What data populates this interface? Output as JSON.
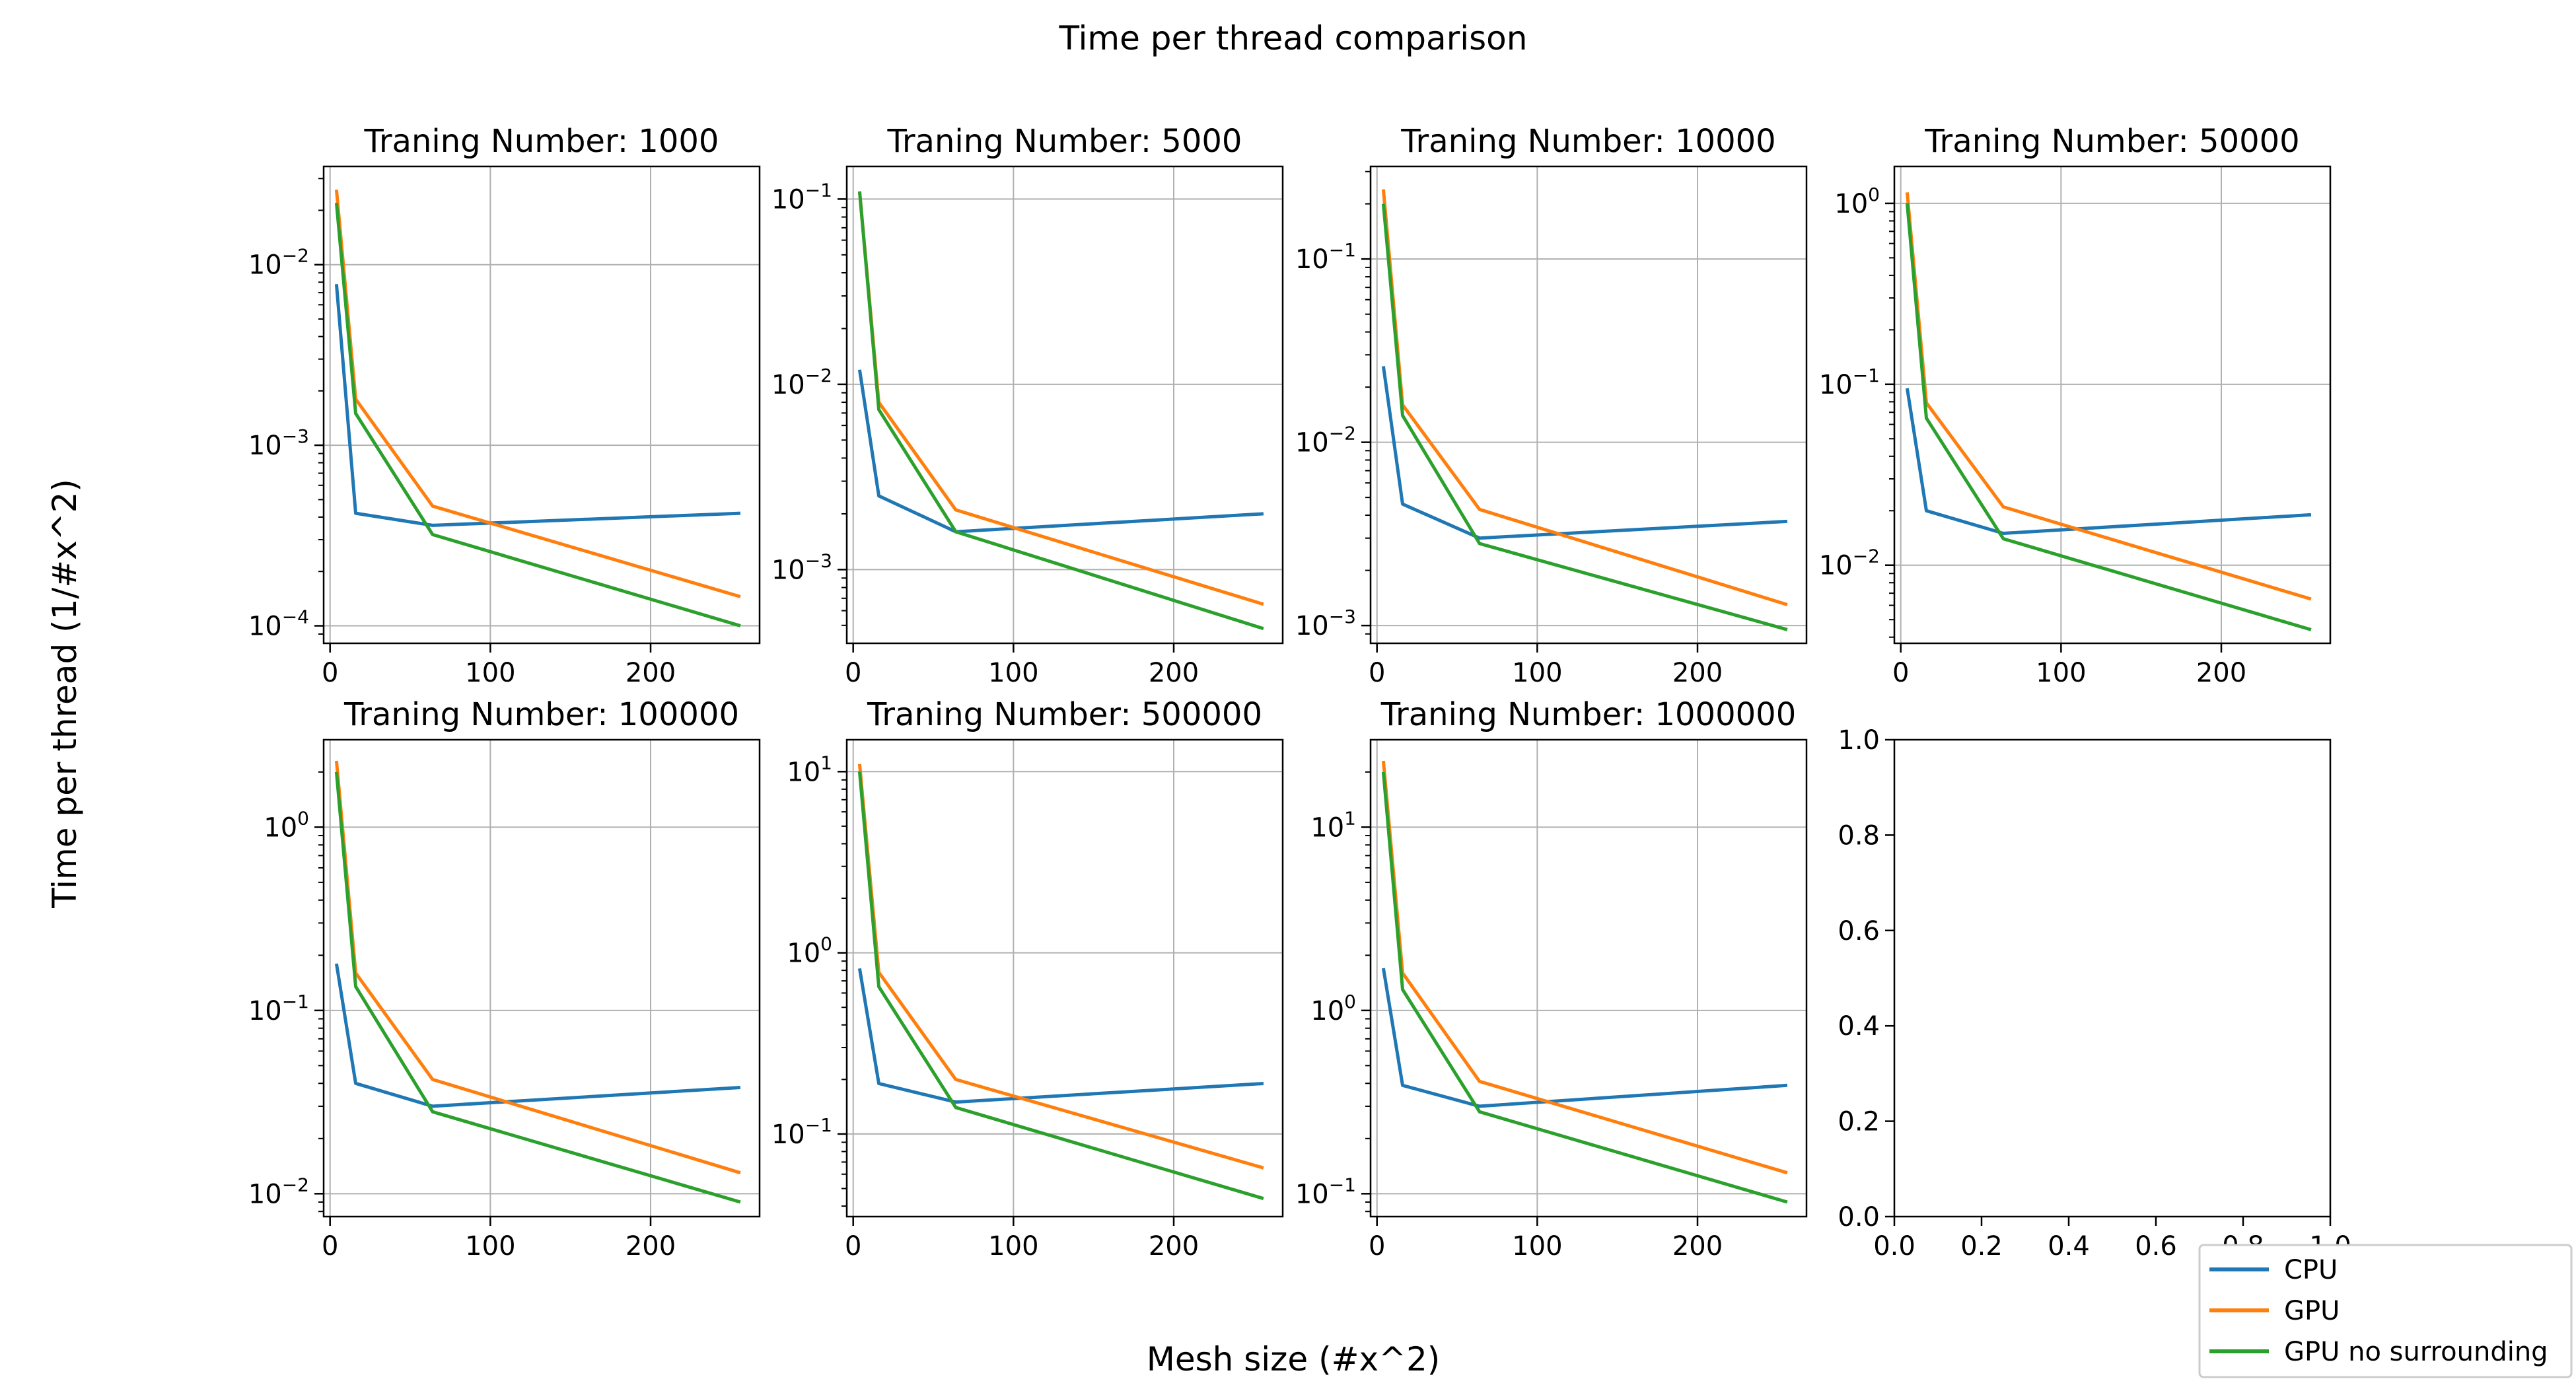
{
  "figure": {
    "suptitle": "Time per thread comparison",
    "ylabel": "Time per thread (1/#x^2)",
    "xlabel": "Mesh size (#x^2)"
  },
  "legend": {
    "placement": "lower-right",
    "entries": [
      {
        "label": "CPU",
        "color": "#1f77b4"
      },
      {
        "label": "GPU",
        "color": "#ff7f0e"
      },
      {
        "label": "GPU no surrounding",
        "color": "#2ca02c"
      }
    ]
  },
  "chart_data": [
    {
      "type": "line",
      "title": "Traning Number: 1000",
      "x": [
        4,
        16,
        64,
        256
      ],
      "xlim": [
        -4,
        268
      ],
      "xticks": [
        0,
        100,
        200
      ],
      "yscale": "log",
      "ylim": [
        8e-05,
        0.035
      ],
      "yticks": [
        0.0001,
        0.001,
        0.01
      ],
      "yticklabels": [
        "10",
        "10",
        "10"
      ],
      "ytickexps": [
        "-4",
        "-3",
        "-2"
      ],
      "grid": true,
      "series": [
        {
          "name": "CPU",
          "values": [
            0.0078,
            0.00042,
            0.00036,
            0.00042
          ]
        },
        {
          "name": "GPU",
          "values": [
            0.026,
            0.0018,
            0.00046,
            0.000145
          ]
        },
        {
          "name": "GPU no surrounding",
          "values": [
            0.022,
            0.0015,
            0.00032,
            0.0001
          ]
        }
      ]
    },
    {
      "type": "line",
      "title": "Traning Number: 5000",
      "x": [
        4,
        16,
        64,
        256
      ],
      "xlim": [
        -4,
        268
      ],
      "xticks": [
        0,
        100,
        200
      ],
      "yscale": "log",
      "ylim": [
        0.0004,
        0.15
      ],
      "yticks": [
        0.001,
        0.01,
        0.1
      ],
      "yticklabels": [
        "10",
        "10",
        "10"
      ],
      "ytickexps": [
        "-3",
        "-2",
        "-1"
      ],
      "grid": true,
      "series": [
        {
          "name": "CPU",
          "values": [
            0.012,
            0.0025,
            0.0016,
            0.002
          ]
        },
        {
          "name": "GPU",
          "values": [
            0.11,
            0.008,
            0.0021,
            0.00065
          ]
        },
        {
          "name": "GPU no surrounding",
          "values": [
            0.11,
            0.0073,
            0.0016,
            0.00048
          ]
        }
      ]
    },
    {
      "type": "line",
      "title": "Traning Number: 10000",
      "x": [
        4,
        16,
        64,
        256
      ],
      "xlim": [
        -4,
        268
      ],
      "xticks": [
        0,
        100,
        200
      ],
      "yscale": "log",
      "ylim": [
        0.0008,
        0.32
      ],
      "yticks": [
        0.001,
        0.01,
        0.1
      ],
      "yticklabels": [
        "10",
        "10",
        "10"
      ],
      "ytickexps": [
        "-3",
        "-2",
        "-1"
      ],
      "grid": true,
      "series": [
        {
          "name": "CPU",
          "values": [
            0.026,
            0.0046,
            0.003,
            0.0037
          ]
        },
        {
          "name": "GPU",
          "values": [
            0.24,
            0.016,
            0.0043,
            0.0013
          ]
        },
        {
          "name": "GPU no surrounding",
          "values": [
            0.2,
            0.014,
            0.0028,
            0.00095
          ]
        }
      ]
    },
    {
      "type": "line",
      "title": "Traning Number: 50000",
      "x": [
        4,
        16,
        64,
        256
      ],
      "xlim": [
        -4,
        268
      ],
      "xticks": [
        0,
        100,
        200
      ],
      "yscale": "log",
      "ylim": [
        0.0037,
        1.6
      ],
      "yticks": [
        0.01,
        0.1,
        1
      ],
      "yticklabels": [
        "10",
        "10",
        "10"
      ],
      "ytickexps": [
        "-2",
        "-1",
        "0"
      ],
      "grid": true,
      "series": [
        {
          "name": "CPU",
          "values": [
            0.095,
            0.02,
            0.015,
            0.019
          ]
        },
        {
          "name": "GPU",
          "values": [
            1.15,
            0.079,
            0.021,
            0.0065
          ]
        },
        {
          "name": "GPU no surrounding",
          "values": [
            1.0,
            0.065,
            0.014,
            0.0044
          ]
        }
      ]
    },
    {
      "type": "line",
      "title": "Traning Number: 100000",
      "x": [
        4,
        16,
        64,
        256
      ],
      "xlim": [
        -4,
        268
      ],
      "xticks": [
        0,
        100,
        200
      ],
      "yscale": "log",
      "ylim": [
        0.0075,
        3.0
      ],
      "yticks": [
        0.01,
        0.1,
        1
      ],
      "yticklabels": [
        "10",
        "10",
        "10"
      ],
      "ytickexps": [
        "-2",
        "-1",
        "0"
      ],
      "grid": true,
      "series": [
        {
          "name": "CPU",
          "values": [
            0.18,
            0.04,
            0.03,
            0.038
          ]
        },
        {
          "name": "GPU",
          "values": [
            2.3,
            0.16,
            0.042,
            0.013
          ]
        },
        {
          "name": "GPU no surrounding",
          "values": [
            2.0,
            0.135,
            0.028,
            0.009
          ]
        }
      ]
    },
    {
      "type": "line",
      "title": "Traning Number: 500000",
      "x": [
        4,
        16,
        64,
        256
      ],
      "xlim": [
        -4,
        268
      ],
      "xticks": [
        0,
        100,
        200
      ],
      "yscale": "log",
      "ylim": [
        0.035,
        15
      ],
      "yticks": [
        0.1,
        1,
        10
      ],
      "yticklabels": [
        "10",
        "10",
        "10"
      ],
      "ytickexps": [
        "-1",
        "0",
        "1"
      ],
      "grid": true,
      "series": [
        {
          "name": "CPU",
          "values": [
            0.82,
            0.19,
            0.15,
            0.19
          ]
        },
        {
          "name": "GPU",
          "values": [
            11,
            0.78,
            0.2,
            0.065
          ]
        },
        {
          "name": "GPU no surrounding",
          "values": [
            10,
            0.65,
            0.14,
            0.044
          ]
        }
      ]
    },
    {
      "type": "line",
      "title": "Traning Number: 1000000",
      "x": [
        4,
        16,
        64,
        256
      ],
      "xlim": [
        -4,
        268
      ],
      "xticks": [
        0,
        100,
        200
      ],
      "yscale": "log",
      "ylim": [
        0.075,
        30
      ],
      "yticks": [
        0.1,
        1,
        10
      ],
      "yticklabels": [
        "10",
        "10",
        "10"
      ],
      "ytickexps": [
        "-1",
        "0",
        "1"
      ],
      "grid": true,
      "series": [
        {
          "name": "CPU",
          "values": [
            1.7,
            0.39,
            0.3,
            0.39
          ]
        },
        {
          "name": "GPU",
          "values": [
            23,
            1.6,
            0.41,
            0.13
          ]
        },
        {
          "name": "GPU no surrounding",
          "values": [
            20,
            1.3,
            0.28,
            0.09
          ]
        }
      ]
    },
    {
      "type": "line",
      "title": "",
      "x": [],
      "xlim": [
        0,
        1
      ],
      "xticks": [
        0.0,
        0.2,
        0.4,
        0.6,
        0.8,
        1.0
      ],
      "xticklabels": [
        "0.0",
        "0.2",
        "0.4",
        "0.6",
        "0.8",
        "1.0"
      ],
      "yscale": "linear",
      "ylim": [
        0,
        1
      ],
      "yticks": [
        0.0,
        0.2,
        0.4,
        0.6,
        0.8,
        1.0
      ],
      "yticklabels": [
        "0.0",
        "0.2",
        "0.4",
        "0.6",
        "0.8",
        "1.0"
      ],
      "grid": false,
      "series": []
    }
  ]
}
